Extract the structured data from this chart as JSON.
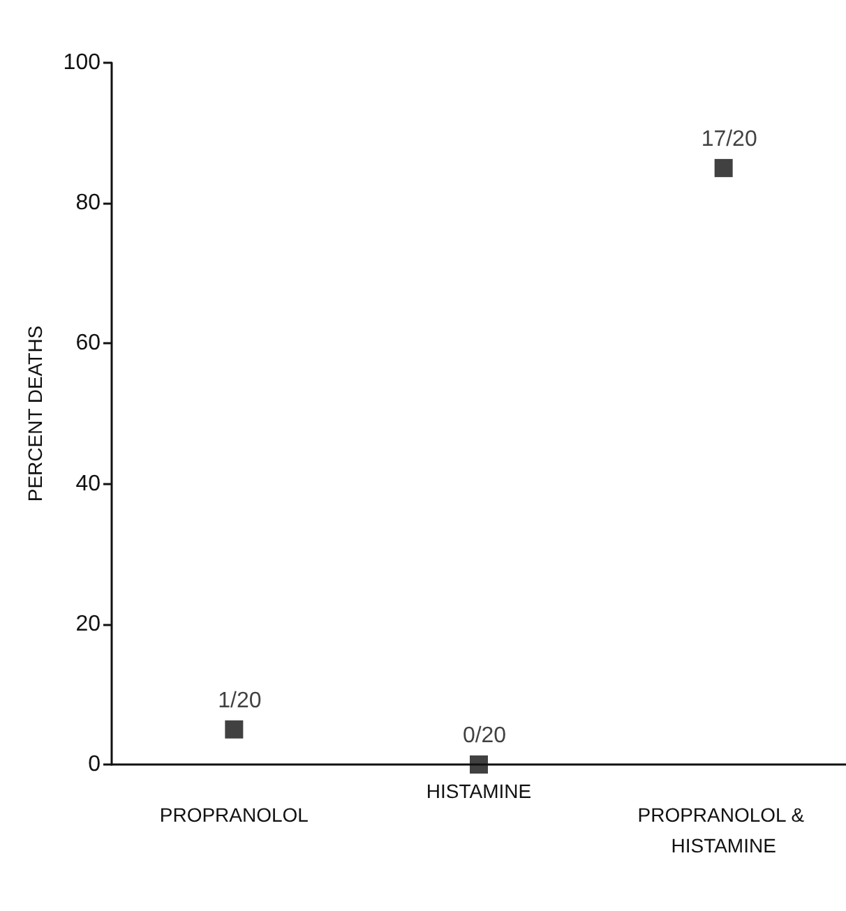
{
  "chart_data": {
    "type": "scatter",
    "ylabel": "PERCENT DEATHS",
    "categories": [
      "PROPRANOLOL",
      "HISTAMINE",
      "PROPRANOLOL & HISTAMINE"
    ],
    "values": [
      5,
      0,
      85
    ],
    "value_labels": [
      "1/20",
      "0/20",
      "17/20"
    ],
    "color": "#111111",
    "marker": "square",
    "ylim": [
      0,
      100
    ],
    "yticks": [
      0,
      20,
      40,
      60,
      80,
      100
    ]
  }
}
